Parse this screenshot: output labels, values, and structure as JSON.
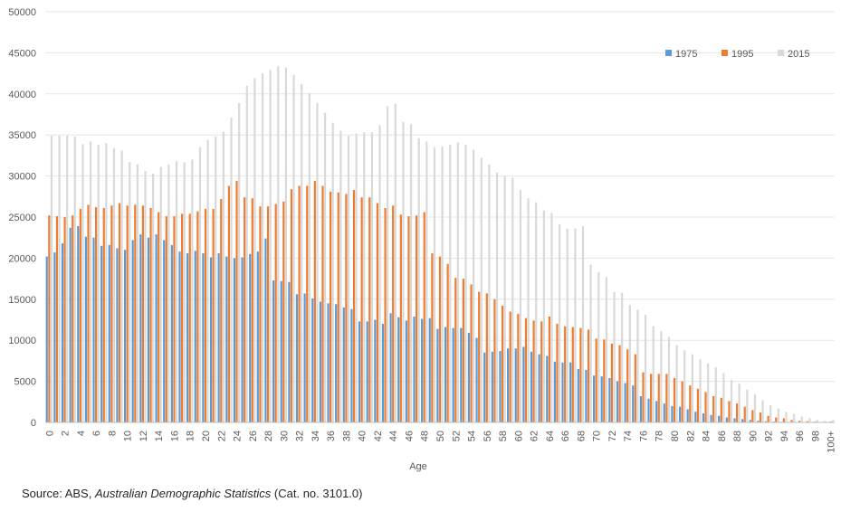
{
  "chart_data": {
    "type": "bar",
    "title": "",
    "xlabel": "Age",
    "ylabel": "",
    "ylim": [
      0,
      50000
    ],
    "yticks": [
      0,
      5000,
      10000,
      15000,
      20000,
      25000,
      30000,
      35000,
      40000,
      45000,
      50000
    ],
    "grid": true,
    "legend_position": "top-right",
    "categories": [
      "0",
      "1",
      "2",
      "3",
      "4",
      "5",
      "6",
      "7",
      "8",
      "9",
      "10",
      "11",
      "12",
      "13",
      "14",
      "15",
      "16",
      "17",
      "18",
      "19",
      "20",
      "21",
      "22",
      "23",
      "24",
      "25",
      "26",
      "27",
      "28",
      "29",
      "30",
      "31",
      "32",
      "33",
      "34",
      "35",
      "36",
      "37",
      "38",
      "39",
      "40",
      "41",
      "42",
      "43",
      "44",
      "45",
      "46",
      "47",
      "48",
      "49",
      "50",
      "51",
      "52",
      "53",
      "54",
      "55",
      "56",
      "57",
      "58",
      "59",
      "60",
      "61",
      "62",
      "63",
      "64",
      "65",
      "66",
      "67",
      "68",
      "69",
      "70",
      "71",
      "72",
      "73",
      "74",
      "75",
      "76",
      "77",
      "78",
      "79",
      "80",
      "81",
      "82",
      "83",
      "84",
      "85",
      "86",
      "87",
      "88",
      "89",
      "90",
      "91",
      "92",
      "93",
      "94",
      "95",
      "96",
      "97",
      "98",
      "99",
      "100+"
    ],
    "tick_labels": [
      "0",
      "2",
      "4",
      "6",
      "8",
      "10",
      "12",
      "14",
      "16",
      "18",
      "20",
      "22",
      "24",
      "26",
      "28",
      "30",
      "32",
      "34",
      "36",
      "38",
      "40",
      "42",
      "44",
      "46",
      "48",
      "50",
      "52",
      "54",
      "56",
      "58",
      "60",
      "62",
      "64",
      "66",
      "68",
      "70",
      "72",
      "74",
      "76",
      "78",
      "80",
      "82",
      "84",
      "86",
      "88",
      "90",
      "92",
      "94",
      "96",
      "98",
      "100+"
    ],
    "series": [
      {
        "name": "1975",
        "color": "#5b9bd5",
        "values": [
          20200,
          20700,
          21800,
          23700,
          23900,
          22600,
          22500,
          21500,
          21600,
          21200,
          21000,
          22200,
          22900,
          22500,
          22900,
          22200,
          21600,
          20800,
          20600,
          20900,
          20600,
          20100,
          20600,
          20200,
          20000,
          20100,
          20500,
          20800,
          22400,
          17300,
          17200,
          17100,
          15600,
          15700,
          15100,
          14700,
          14500,
          14400,
          14000,
          13800,
          12300,
          12300,
          12500,
          12000,
          13300,
          12800,
          12400,
          12900,
          12600,
          12700,
          11400,
          11600,
          11500,
          11500,
          10900,
          10300,
          8500,
          8600,
          8700,
          9000,
          9000,
          9200,
          8600,
          8300,
          8100,
          7400,
          7300,
          7300,
          6500,
          6400,
          5700,
          5600,
          5400,
          5000,
          4800,
          4500,
          3200,
          2900,
          2600,
          2300,
          2000,
          1900,
          1600,
          1300,
          1100,
          900,
          800,
          600,
          500,
          400,
          300,
          200,
          150,
          100,
          80,
          60,
          40,
          30,
          20,
          10,
          20
        ]
      },
      {
        "name": "1995",
        "color": "#ed7d31",
        "values": [
          25200,
          25100,
          25000,
          25200,
          26000,
          26500,
          26200,
          26100,
          26400,
          26700,
          26400,
          26500,
          26400,
          26100,
          25600,
          25100,
          25100,
          25400,
          25400,
          25700,
          26000,
          26000,
          27200,
          28800,
          29400,
          27400,
          27300,
          26300,
          26300,
          26600,
          26900,
          28400,
          28800,
          28800,
          29400,
          28800,
          28100,
          28000,
          27800,
          28300,
          27400,
          27400,
          26700,
          26100,
          26400,
          25300,
          25100,
          25200,
          25600,
          20600,
          20200,
          19300,
          17600,
          17500,
          16800,
          15900,
          15700,
          15000,
          14200,
          13500,
          13200,
          12700,
          12400,
          12300,
          12900,
          12000,
          11700,
          11600,
          11500,
          11300,
          10200,
          10100,
          9600,
          9400,
          8900,
          8300,
          6100,
          5900,
          5900,
          5900,
          5400,
          5000,
          4500,
          4100,
          3700,
          3200,
          3000,
          2600,
          2300,
          1900,
          1500,
          1200,
          800,
          600,
          500,
          300,
          200,
          150,
          100,
          60,
          100
        ]
      },
      {
        "name": "2015",
        "color": "#d9d9d9",
        "values": [
          34900,
          34900,
          34900,
          34800,
          33900,
          34200,
          33800,
          34000,
          33400,
          33100,
          31700,
          31400,
          30600,
          30300,
          31100,
          31400,
          31800,
          31700,
          32000,
          33500,
          34400,
          34800,
          35400,
          37100,
          38900,
          41000,
          41900,
          42500,
          42900,
          43400,
          43200,
          42300,
          41200,
          40100,
          38900,
          37700,
          36500,
          35500,
          34900,
          35200,
          35300,
          35300,
          36200,
          38500,
          38800,
          36600,
          36300,
          34600,
          34200,
          33500,
          33600,
          33800,
          34100,
          33800,
          33200,
          32200,
          31400,
          30400,
          30000,
          29800,
          28300,
          27300,
          26800,
          25800,
          25500,
          24100,
          23600,
          23600,
          23900,
          19200,
          18300,
          17700,
          15900,
          15800,
          14300,
          13700,
          13100,
          11700,
          11100,
          10400,
          9400,
          8800,
          8300,
          7700,
          7200,
          6700,
          6000,
          5200,
          4700,
          4000,
          3400,
          2700,
          2100,
          1700,
          1300,
          1000,
          700,
          500,
          300,
          200,
          300
        ]
      }
    ],
    "source_note": {
      "prefix": "Source:  ABS, ",
      "title": "Australian Demographic Statistics",
      "suffix": " (Cat. no. 3101.0)"
    }
  }
}
